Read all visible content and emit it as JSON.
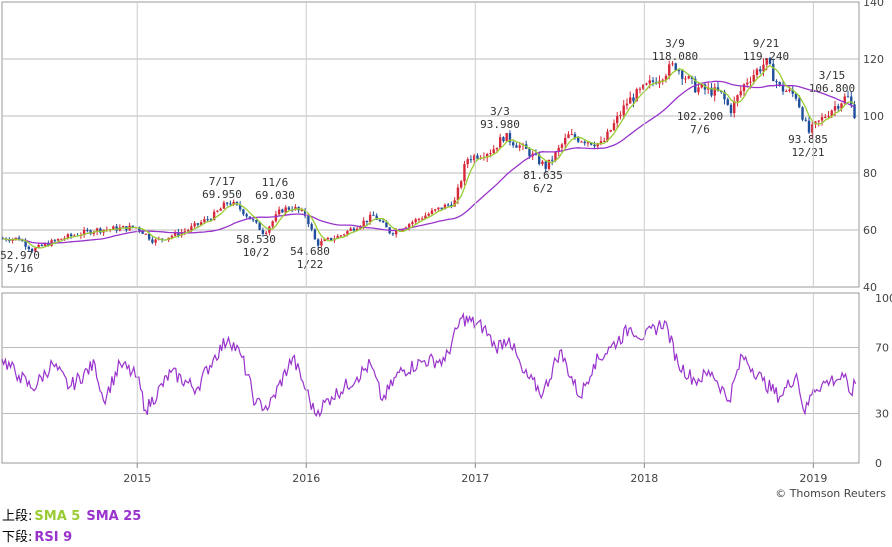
{
  "chart_data": [
    {
      "type": "candlestick",
      "panel": "upper",
      "ylim": [
        40,
        140
      ],
      "yticks": [
        "140",
        "120",
        "100",
        "80",
        "60",
        "40"
      ],
      "grid": true,
      "series": [
        {
          "name": "SMA 5",
          "color": "#99cc33"
        },
        {
          "name": "SMA 25",
          "color": "#9933cc"
        }
      ],
      "price_path": [
        [
          2014.3,
          57
        ],
        [
          2014.38,
          53
        ],
        [
          2014.55,
          57
        ],
        [
          2014.75,
          60
        ],
        [
          2015.0,
          61
        ],
        [
          2015.1,
          56
        ],
        [
          2015.3,
          60
        ],
        [
          2015.45,
          65
        ],
        [
          2015.54,
          70
        ],
        [
          2015.62,
          67
        ],
        [
          2015.75,
          59
        ],
        [
          2015.85,
          67
        ],
        [
          2015.92,
          68
        ],
        [
          2016.0,
          65
        ],
        [
          2016.06,
          55
        ],
        [
          2016.2,
          58
        ],
        [
          2016.4,
          65
        ],
        [
          2016.5,
          59
        ],
        [
          2016.7,
          65
        ],
        [
          2016.88,
          70
        ],
        [
          2016.95,
          85
        ],
        [
          2017.1,
          88
        ],
        [
          2017.17,
          93
        ],
        [
          2017.3,
          88
        ],
        [
          2017.42,
          82
        ],
        [
          2017.55,
          93
        ],
        [
          2017.75,
          90
        ],
        [
          2017.9,
          105
        ],
        [
          2018.05,
          112
        ],
        [
          2018.18,
          118
        ],
        [
          2018.3,
          110
        ],
        [
          2018.45,
          108
        ],
        [
          2018.51,
          102
        ],
        [
          2018.6,
          112
        ],
        [
          2018.72,
          119
        ],
        [
          2018.8,
          110
        ],
        [
          2018.9,
          107
        ],
        [
          2018.97,
          94
        ],
        [
          2019.1,
          102
        ],
        [
          2019.2,
          107
        ],
        [
          2019.25,
          100
        ]
      ],
      "annotations": [
        {
          "date": "5/16",
          "value": "52.970"
        },
        {
          "date": "7/17",
          "value": "69.950"
        },
        {
          "date": "10/2",
          "value": "58.530"
        },
        {
          "date": "11/6",
          "value": "69.030"
        },
        {
          "date": "1/22",
          "value": "54.680"
        },
        {
          "date": "3/3",
          "value": "93.980"
        },
        {
          "date": "6/2",
          "value": "81.635"
        },
        {
          "date": "3/9",
          "value": "118.080"
        },
        {
          "date": "7/6",
          "value": "102.200"
        },
        {
          "date": "9/21",
          "value": "119.240"
        },
        {
          "date": "12/21",
          "value": "93.885"
        },
        {
          "date": "3/15",
          "value": "106.800"
        }
      ]
    },
    {
      "type": "line",
      "panel": "lower",
      "ylim": [
        0,
        100
      ],
      "yticks": [
        "100",
        "70",
        "30",
        "0"
      ],
      "grid": true,
      "series": [
        {
          "name": "RSI 9",
          "color": "#9933cc",
          "values": [
            [
              2014.2,
              63
            ],
            [
              2014.3,
              53
            ],
            [
              2014.38,
              45
            ],
            [
              2014.5,
              60
            ],
            [
              2014.6,
              46
            ],
            [
              2014.75,
              60
            ],
            [
              2014.8,
              38
            ],
            [
              2014.9,
              60
            ],
            [
              2015.0,
              52
            ],
            [
              2015.05,
              32
            ],
            [
              2015.2,
              55
            ],
            [
              2015.35,
              45
            ],
            [
              2015.45,
              63
            ],
            [
              2015.54,
              76
            ],
            [
              2015.62,
              64
            ],
            [
              2015.7,
              36
            ],
            [
              2015.78,
              34
            ],
            [
              2015.92,
              64
            ],
            [
              2016.0,
              44
            ],
            [
              2016.05,
              30
            ],
            [
              2016.15,
              40
            ],
            [
              2016.3,
              52
            ],
            [
              2016.38,
              60
            ],
            [
              2016.45,
              38
            ],
            [
              2016.55,
              55
            ],
            [
              2016.7,
              62
            ],
            [
              2016.82,
              62
            ],
            [
              2016.92,
              88
            ],
            [
              2017.05,
              82
            ],
            [
              2017.12,
              70
            ],
            [
              2017.2,
              76
            ],
            [
              2017.28,
              55
            ],
            [
              2017.4,
              42
            ],
            [
              2017.5,
              68
            ],
            [
              2017.62,
              40
            ],
            [
              2017.7,
              60
            ],
            [
              2017.8,
              70
            ],
            [
              2017.92,
              82
            ],
            [
              2018.0,
              76
            ],
            [
              2018.12,
              86
            ],
            [
              2018.2,
              60
            ],
            [
              2018.3,
              50
            ],
            [
              2018.4,
              55
            ],
            [
              2018.5,
              38
            ],
            [
              2018.58,
              65
            ],
            [
              2018.7,
              50
            ],
            [
              2018.8,
              40
            ],
            [
              2018.9,
              54
            ],
            [
              2018.95,
              30
            ],
            [
              2019.0,
              45
            ],
            [
              2019.1,
              50
            ],
            [
              2019.18,
              52
            ],
            [
              2019.22,
              42
            ],
            [
              2019.25,
              48
            ]
          ]
        }
      ]
    }
  ],
  "x_axis_labels": [
    "2015",
    "2016",
    "2017",
    "2018",
    "2019"
  ],
  "credit": "© Thomson Reuters",
  "legend": {
    "upper_prefix": "上段:",
    "sma5": "SMA 5",
    "sma25": "SMA 25",
    "lower_prefix": "下段:",
    "rsi9": "RSI 9"
  }
}
